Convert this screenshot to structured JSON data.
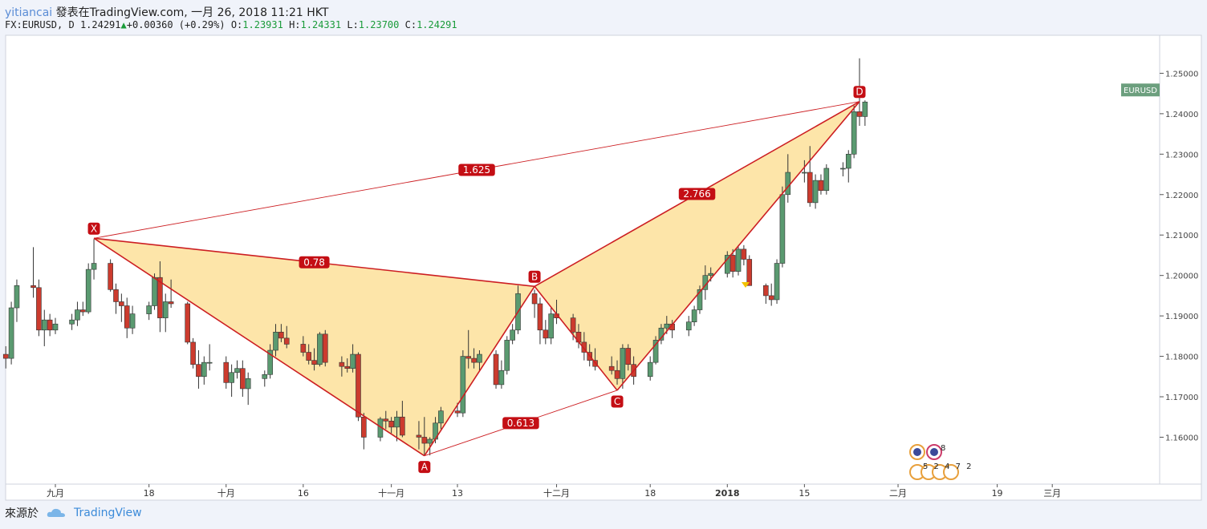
{
  "header": {
    "user": "yitiancai",
    "published": "發表在TradingView.com, 一月 26, 2018 11:21 HKT",
    "symbol": "FX:EURUSD, D",
    "last": "1.24291",
    "change": "+0.00360 (+0.29%)",
    "o_label": "O:",
    "o_value": "1.23931",
    "h_label": "H:",
    "h_value": "1.24331",
    "l_label": "L:",
    "l_value": "1.23700",
    "c_label": "C:",
    "c_value": "1.24291"
  },
  "footer": {
    "source_label": "來源於",
    "brand": "TradingView"
  },
  "colors": {
    "up": "#5a9a70",
    "down": "#cc3b2e",
    "pattern_line": "#cc1e22",
    "pattern_fill": "#fde19a",
    "axis": "#555555",
    "price_badge": "#6c9f7e"
  },
  "chart_data": {
    "type": "candlestick",
    "symbol_badge": "EURUSD",
    "ylim": [
      1.1484,
      1.2594
    ],
    "yticks": [
      1.16,
      1.17,
      1.18,
      1.19,
      1.2,
      1.21,
      1.22,
      1.23,
      1.24,
      1.25
    ],
    "ytick_labels": [
      "1.16000",
      "1.17000",
      "1.18000",
      "1.19000",
      "1.20000",
      "1.21000",
      "1.22000",
      "1.23000",
      "1.24000",
      "1.25000"
    ],
    "xticks": [
      {
        "label": "九月",
        "date": "2017-09-01"
      },
      {
        "label": "18",
        "date": "2017-09-18"
      },
      {
        "label": "十月",
        "date": "2017-10-02"
      },
      {
        "label": "16",
        "date": "2017-10-16"
      },
      {
        "label": "十一月",
        "date": "2017-11-01"
      },
      {
        "label": "13",
        "date": "2017-11-13"
      },
      {
        "label": "十二月",
        "date": "2017-12-01"
      },
      {
        "label": "18",
        "date": "2017-12-18"
      },
      {
        "label": "2018",
        "date": "2018-01-01"
      },
      {
        "label": "15",
        "date": "2018-01-15"
      },
      {
        "label": "二月",
        "date": "2018-02-01"
      },
      {
        "label": "19",
        "date": "2018-02-19"
      },
      {
        "label": "三月",
        "date": "2018-03-01"
      }
    ],
    "candles": [
      [
        1.1805,
        1.1825,
        1.177,
        1.1795
      ],
      [
        1.1795,
        1.1935,
        1.178,
        1.192
      ],
      [
        1.192,
        1.199,
        1.1885,
        1.1975
      ],
      [
        1.1975,
        1.207,
        1.1945,
        1.197
      ],
      [
        1.197,
        1.199,
        1.185,
        1.1865
      ],
      [
        1.1865,
        1.1915,
        1.1825,
        1.189
      ],
      [
        1.189,
        1.1905,
        1.185,
        1.1865
      ],
      [
        1.1865,
        1.1895,
        1.1855,
        1.188
      ],
      [
        1.188,
        1.1905,
        1.1865,
        1.189
      ],
      [
        1.189,
        1.1935,
        1.1875,
        1.1915
      ],
      [
        1.1915,
        1.1935,
        1.19,
        1.191
      ],
      [
        1.191,
        1.203,
        1.1905,
        1.2015
      ],
      [
        1.2015,
        1.209,
        1.199,
        1.203
      ],
      [
        1.203,
        1.204,
        1.196,
        1.1965
      ],
      [
        1.1965,
        1.198,
        1.1905,
        1.1935
      ],
      [
        1.1935,
        1.1955,
        1.1885,
        1.1925
      ],
      [
        1.1925,
        1.1945,
        1.1845,
        1.187
      ],
      [
        1.187,
        1.1925,
        1.1855,
        1.1905
      ],
      [
        1.1905,
        1.1935,
        1.189,
        1.1925
      ],
      [
        1.1925,
        1.2005,
        1.1915,
        1.1995
      ],
      [
        1.1995,
        1.2035,
        1.186,
        1.1895
      ],
      [
        1.1895,
        1.1955,
        1.186,
        1.1935
      ],
      [
        1.1935,
        1.199,
        1.192,
        1.193
      ],
      [
        1.193,
        1.1935,
        1.183,
        1.1835
      ],
      [
        1.1835,
        1.1845,
        1.177,
        1.178
      ],
      [
        1.178,
        1.1815,
        1.172,
        1.175
      ],
      [
        1.175,
        1.18,
        1.173,
        1.1785
      ],
      [
        1.1785,
        1.183,
        1.1765,
        1.1785
      ],
      [
        1.1785,
        1.18,
        1.172,
        1.1735
      ],
      [
        1.1735,
        1.178,
        1.17,
        1.176
      ],
      [
        1.176,
        1.179,
        1.1745,
        1.177
      ],
      [
        1.177,
        1.179,
        1.17,
        1.172
      ],
      [
        1.172,
        1.176,
        1.168,
        1.1745
      ],
      [
        1.1745,
        1.1765,
        1.1725,
        1.1755
      ],
      [
        1.1755,
        1.183,
        1.1745,
        1.1815
      ],
      [
        1.1815,
        1.188,
        1.18,
        1.186
      ],
      [
        1.186,
        1.188,
        1.1835,
        1.1845
      ],
      [
        1.1845,
        1.1875,
        1.182,
        1.183
      ],
      [
        1.183,
        1.185,
        1.18,
        1.181
      ],
      [
        1.181,
        1.183,
        1.178,
        1.179
      ],
      [
        1.179,
        1.182,
        1.1765,
        1.178
      ],
      [
        1.178,
        1.186,
        1.1775,
        1.1855
      ],
      [
        1.1855,
        1.1865,
        1.1775,
        1.1785
      ],
      [
        1.1785,
        1.18,
        1.175,
        1.1775
      ],
      [
        1.1775,
        1.1795,
        1.176,
        1.177
      ],
      [
        1.177,
        1.183,
        1.176,
        1.1805
      ],
      [
        1.1805,
        1.181,
        1.164,
        1.165
      ],
      [
        1.165,
        1.166,
        1.157,
        1.16
      ],
      [
        1.16,
        1.165,
        1.159,
        1.1645
      ],
      [
        1.1645,
        1.1665,
        1.162,
        1.164
      ],
      [
        1.164,
        1.165,
        1.161,
        1.1625
      ],
      [
        1.1625,
        1.1665,
        1.159,
        1.165
      ],
      [
        1.165,
        1.169,
        1.16,
        1.1605
      ],
      [
        1.1605,
        1.164,
        1.157,
        1.16
      ],
      [
        1.16,
        1.165,
        1.1555,
        1.1585
      ],
      [
        1.1585,
        1.16,
        1.1555,
        1.1595
      ],
      [
        1.1595,
        1.165,
        1.1585,
        1.1635
      ],
      [
        1.1635,
        1.1675,
        1.162,
        1.1665
      ],
      [
        1.1665,
        1.1685,
        1.165,
        1.166
      ],
      [
        1.166,
        1.1815,
        1.165,
        1.18
      ],
      [
        1.18,
        1.1865,
        1.177,
        1.1795
      ],
      [
        1.1795,
        1.182,
        1.177,
        1.1785
      ],
      [
        1.1785,
        1.1815,
        1.1765,
        1.1805
      ],
      [
        1.1805,
        1.1815,
        1.172,
        1.173
      ],
      [
        1.173,
        1.179,
        1.172,
        1.1765
      ],
      [
        1.1765,
        1.185,
        1.1755,
        1.184
      ],
      [
        1.184,
        1.188,
        1.183,
        1.1865
      ],
      [
        1.1865,
        1.1975,
        1.1855,
        1.1955
      ],
      [
        1.1955,
        1.1965,
        1.1895,
        1.193
      ],
      [
        1.193,
        1.1945,
        1.183,
        1.1865
      ],
      [
        1.1865,
        1.189,
        1.183,
        1.1845
      ],
      [
        1.1845,
        1.192,
        1.183,
        1.1905
      ],
      [
        1.1905,
        1.194,
        1.188,
        1.1895
      ],
      [
        1.1895,
        1.1905,
        1.184,
        1.186
      ],
      [
        1.186,
        1.188,
        1.182,
        1.1835
      ],
      [
        1.1835,
        1.186,
        1.179,
        1.181
      ],
      [
        1.181,
        1.183,
        1.1775,
        1.179
      ],
      [
        1.179,
        1.182,
        1.1765,
        1.1775
      ],
      [
        1.1775,
        1.18,
        1.1755,
        1.1765
      ],
      [
        1.1765,
        1.179,
        1.173,
        1.1745
      ],
      [
        1.1745,
        1.183,
        1.172,
        1.182
      ],
      [
        1.182,
        1.183,
        1.1765,
        1.178
      ],
      [
        1.178,
        1.18,
        1.173,
        1.175
      ],
      [
        1.175,
        1.18,
        1.174,
        1.1785
      ],
      [
        1.1785,
        1.185,
        1.178,
        1.184
      ],
      [
        1.184,
        1.188,
        1.183,
        1.187
      ],
      [
        1.187,
        1.19,
        1.1855,
        1.188
      ],
      [
        1.188,
        1.189,
        1.1845,
        1.1865
      ],
      [
        1.1865,
        1.19,
        1.185,
        1.1885
      ],
      [
        1.1885,
        1.1925,
        1.1875,
        1.1915
      ],
      [
        1.1915,
        1.1975,
        1.1905,
        1.1965
      ],
      [
        1.1965,
        1.2025,
        1.194,
        1.2
      ],
      [
        1.2,
        1.202,
        1.1985,
        1.2005
      ],
      [
        1.2005,
        1.206,
        1.1995,
        1.205
      ],
      [
        1.205,
        1.2065,
        1.1995,
        1.201
      ],
      [
        1.201,
        1.2075,
        1.2,
        1.2065
      ],
      [
        1.2065,
        1.2075,
        1.2025,
        1.204
      ],
      [
        1.204,
        1.205,
        1.1975,
        1.1975
      ],
      [
        1.1975,
        1.198,
        1.193,
        1.195
      ],
      [
        1.195,
        1.198,
        1.1925,
        1.194
      ],
      [
        1.194,
        1.204,
        1.193,
        1.203
      ],
      [
        1.203,
        1.222,
        1.202,
        1.22
      ],
      [
        1.22,
        1.23,
        1.218,
        1.2255
      ],
      [
        1.2255,
        1.2285,
        1.223,
        1.2255
      ],
      [
        1.2255,
        1.232,
        1.217,
        1.218
      ],
      [
        1.218,
        1.225,
        1.2165,
        1.2235
      ],
      [
        1.2235,
        1.225,
        1.22,
        1.221
      ],
      [
        1.221,
        1.2275,
        1.22,
        1.2265
      ],
      [
        1.2265,
        1.228,
        1.2245,
        1.2265
      ],
      [
        1.2265,
        1.231,
        1.223,
        1.23
      ],
      [
        1.23,
        1.242,
        1.229,
        1.2405
      ],
      [
        1.2405,
        1.2537,
        1.237,
        1.2393
      ],
      [
        1.2393,
        1.2433,
        1.237,
        1.2429
      ]
    ],
    "harmonic_pattern": {
      "points": [
        {
          "label": "X",
          "date": "2017-09-08",
          "price": 1.2092
        },
        {
          "label": "A",
          "date": "2017-11-07",
          "price": 1.1554
        },
        {
          "label": "B",
          "date": "2017-11-27",
          "price": 1.1973
        },
        {
          "label": "C",
          "date": "2017-12-12",
          "price": 1.1716
        },
        {
          "label": "D",
          "date": "2018-01-25",
          "price": 1.243
        }
      ],
      "ratios": [
        {
          "label": "0.78",
          "between": [
            "X",
            "B"
          ]
        },
        {
          "label": "0.613",
          "between": [
            "A",
            "C"
          ]
        },
        {
          "label": "2.766",
          "between": [
            "B",
            "D"
          ]
        },
        {
          "label": "1.625",
          "between": [
            "X",
            "D"
          ]
        }
      ]
    },
    "badge_numbers": {
      "top": "8",
      "bottom": "5 2 4 7 2"
    }
  }
}
